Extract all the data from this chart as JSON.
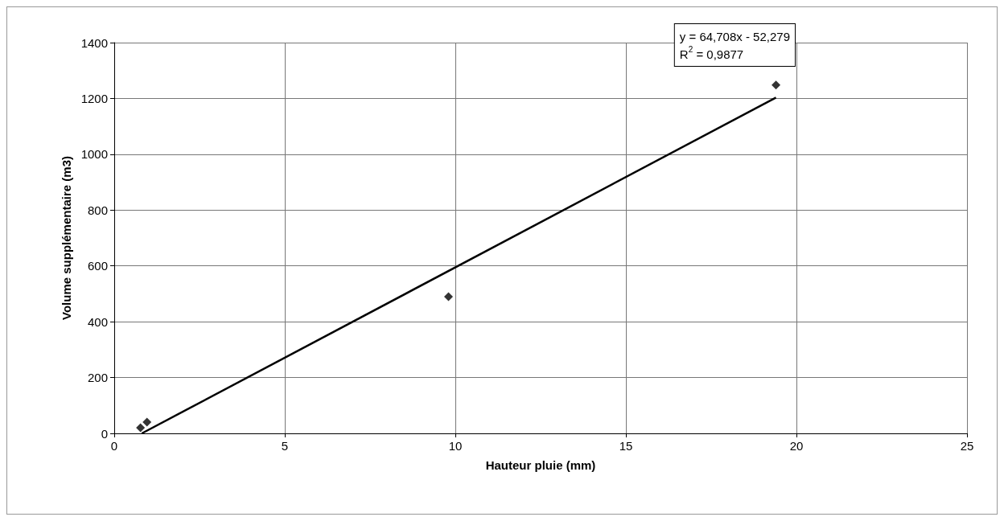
{
  "chart_data": {
    "type": "scatter",
    "xlabel": "Hauteur pluie (mm)",
    "ylabel": "Volume supplémentaire (m3)",
    "xlim": [
      0,
      25
    ],
    "xticks": [
      0,
      5,
      10,
      15,
      20,
      25
    ],
    "ylim": [
      0,
      1400
    ],
    "yticks": [
      0,
      200,
      400,
      600,
      800,
      1000,
      1200,
      1400
    ],
    "grid": true,
    "marker": "diamond",
    "annotations": [
      "y = 64,708x - 52,279\nR$^{2}$ = 0,9877"
    ],
    "series": [
      {
        "color": "#000000",
        "x": [
          0.77,
          0.96,
          9.8,
          19.4
        ],
        "values": [
          20,
          40,
          490,
          1248
        ]
      },
      {
        "type": "line",
        "color": "#000000",
        "x": [
          0.81,
          19.4
        ],
        "values": [
          0,
          1203
        ],
        "marker": "none",
        "line_style": "solid"
      }
    ]
  }
}
